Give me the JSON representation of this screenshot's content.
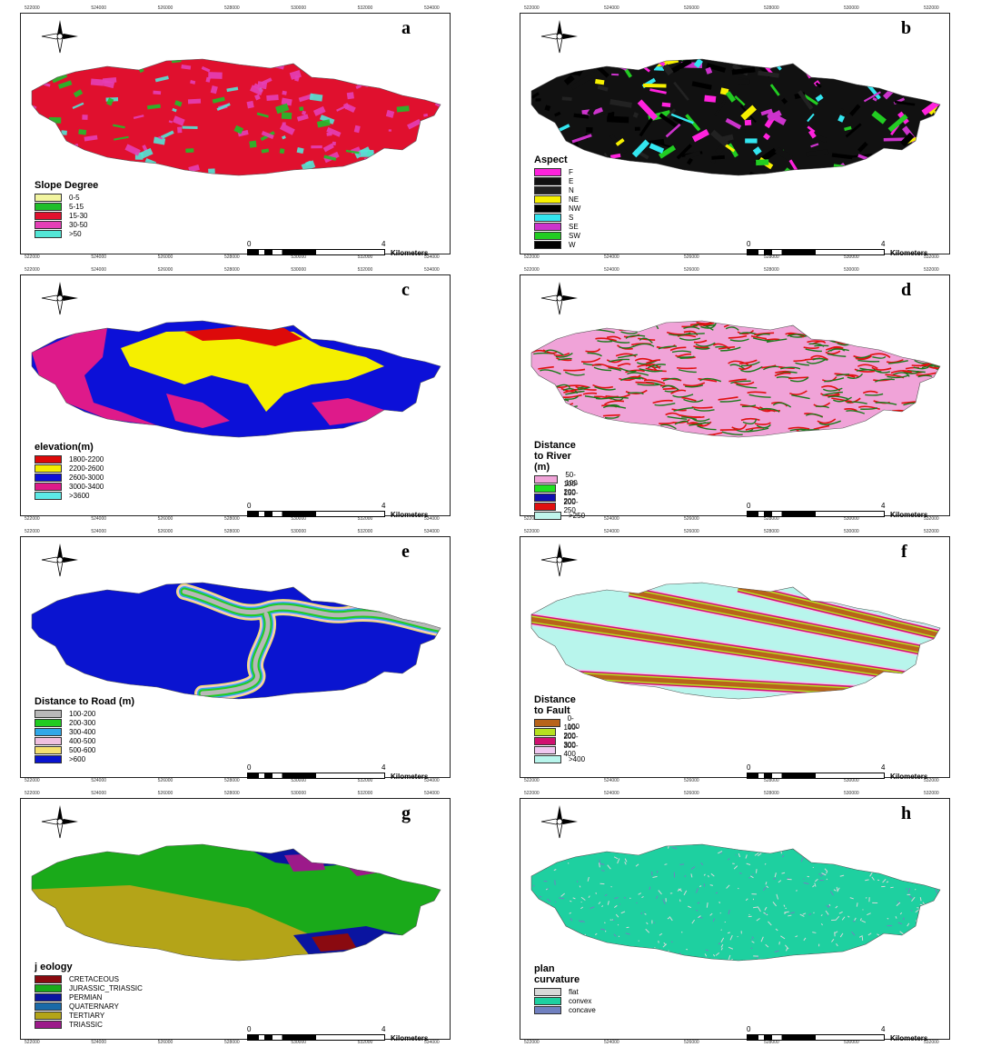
{
  "panels": [
    {
      "id": "a",
      "letter": "a",
      "legend_title": "Slope Degree",
      "classes": [
        {
          "label": "0-5",
          "color": "#f2f5a0"
        },
        {
          "label": "5-15",
          "color": "#1fbf2a"
        },
        {
          "label": "15-30",
          "color": "#e0102e"
        },
        {
          "label": "30-50",
          "color": "#e43fb6"
        },
        {
          "label": ">50",
          "color": "#53e6d6"
        }
      ],
      "scale": {
        "start": "0",
        "end": "4",
        "unit": "Kilometers"
      }
    },
    {
      "id": "b",
      "letter": "b",
      "legend_title": "Aspect",
      "classes": [
        {
          "label": "F",
          "color": "#ff22dd"
        },
        {
          "label": "E",
          "color": "#111111"
        },
        {
          "label": "N",
          "color": "#222222"
        },
        {
          "label": "NE",
          "color": "#f6f000"
        },
        {
          "label": "NW",
          "color": "#000000"
        },
        {
          "label": "S",
          "color": "#33e6f0"
        },
        {
          "label": "SE",
          "color": "#cc33cc"
        },
        {
          "label": "SW",
          "color": "#22cc22"
        },
        {
          "label": "W",
          "color": "#000000"
        }
      ],
      "scale": {
        "start": "0",
        "end": "4",
        "unit": "Kilometers"
      }
    },
    {
      "id": "c",
      "letter": "c",
      "legend_title": "elevation(m)",
      "classes": [
        {
          "label": "1800-2200",
          "color": "#dd0a0a"
        },
        {
          "label": "2200-2600",
          "color": "#f5ef00"
        },
        {
          "label": "2600-3000",
          "color": "#0c10d8"
        },
        {
          "label": "3000-3400",
          "color": "#de1a8a"
        },
        {
          "label": ">3600",
          "color": "#5ce9e6"
        }
      ],
      "scale": {
        "start": "0",
        "end": "4",
        "unit": "Kilometers"
      }
    },
    {
      "id": "d",
      "letter": "d",
      "legend_title": "Distance to River (m)",
      "classes": [
        {
          "label": "50-100",
          "color": "#f0a3d8"
        },
        {
          "label": "100-200",
          "color": "#20e020"
        },
        {
          "label": "150-200",
          "color": "#1010b0"
        },
        {
          "label": "200-250",
          "color": "#e01010"
        },
        {
          "label": ">250",
          "color": "#c0f5ec"
        }
      ],
      "scale": {
        "start": "0",
        "end": "4",
        "unit": "Kilometers"
      }
    },
    {
      "id": "e",
      "letter": "e",
      "legend_title": "Distance to Road (m)",
      "classes": [
        {
          "label": "100-200",
          "color": "#b8b8b8"
        },
        {
          "label": "200-300",
          "color": "#22cc22"
        },
        {
          "label": "300-400",
          "color": "#30a8e8"
        },
        {
          "label": "400-500",
          "color": "#f0c0e0"
        },
        {
          "label": "500-600",
          "color": "#f5e070"
        },
        {
          "label": ">600",
          "color": "#0a14d0"
        }
      ],
      "scale": {
        "start": "0",
        "end": "4",
        "unit": "Kilometers"
      }
    },
    {
      "id": "f",
      "letter": "f",
      "legend_title": "Distance to Fault",
      "classes": [
        {
          "label": "0-100",
          "color": "#b8641a"
        },
        {
          "label": "100-200",
          "color": "#b6e020"
        },
        {
          "label": "200-300",
          "color": "#d01070"
        },
        {
          "label": "300-400",
          "color": "#f0c8f0"
        },
        {
          "label": ">400",
          "color": "#b8f5ec"
        }
      ],
      "scale": {
        "start": "0",
        "end": "4",
        "unit": "Kilometers"
      }
    },
    {
      "id": "g",
      "letter": "g",
      "legend_title": "j eology",
      "classes": [
        {
          "label": "CRETACEOUS",
          "color": "#8a0a10"
        },
        {
          "label": "JURASSIC_TRIASSIC",
          "color": "#1aaa1a"
        },
        {
          "label": "PERMIAN",
          "color": "#0a14a0"
        },
        {
          "label": "QUATERNARY",
          "color": "#1a6aa8"
        },
        {
          "label": "TERTIARY",
          "color": "#b4a418"
        },
        {
          "label": "TRIASSIC",
          "color": "#9c1a8a"
        }
      ],
      "scale": {
        "start": "0",
        "end": "4",
        "unit": "Kilometers"
      }
    },
    {
      "id": "h",
      "letter": "h",
      "legend_title": "plan curvature",
      "classes": [
        {
          "label": "flat",
          "color": "#d8d8d8"
        },
        {
          "label": "convex",
          "color": "#1ed0a0"
        },
        {
          "label": "concave",
          "color": "#7080c0"
        }
      ],
      "scale": {
        "start": "0",
        "end": "4",
        "unit": "Kilometers"
      }
    }
  ],
  "easting_ticks_left": [
    "522000",
    "524000",
    "526000",
    "528000",
    "530000",
    "532000",
    "534000"
  ],
  "easting_ticks_right": [
    "522000",
    "524000",
    "526000",
    "528000",
    "530000",
    "532000"
  ]
}
